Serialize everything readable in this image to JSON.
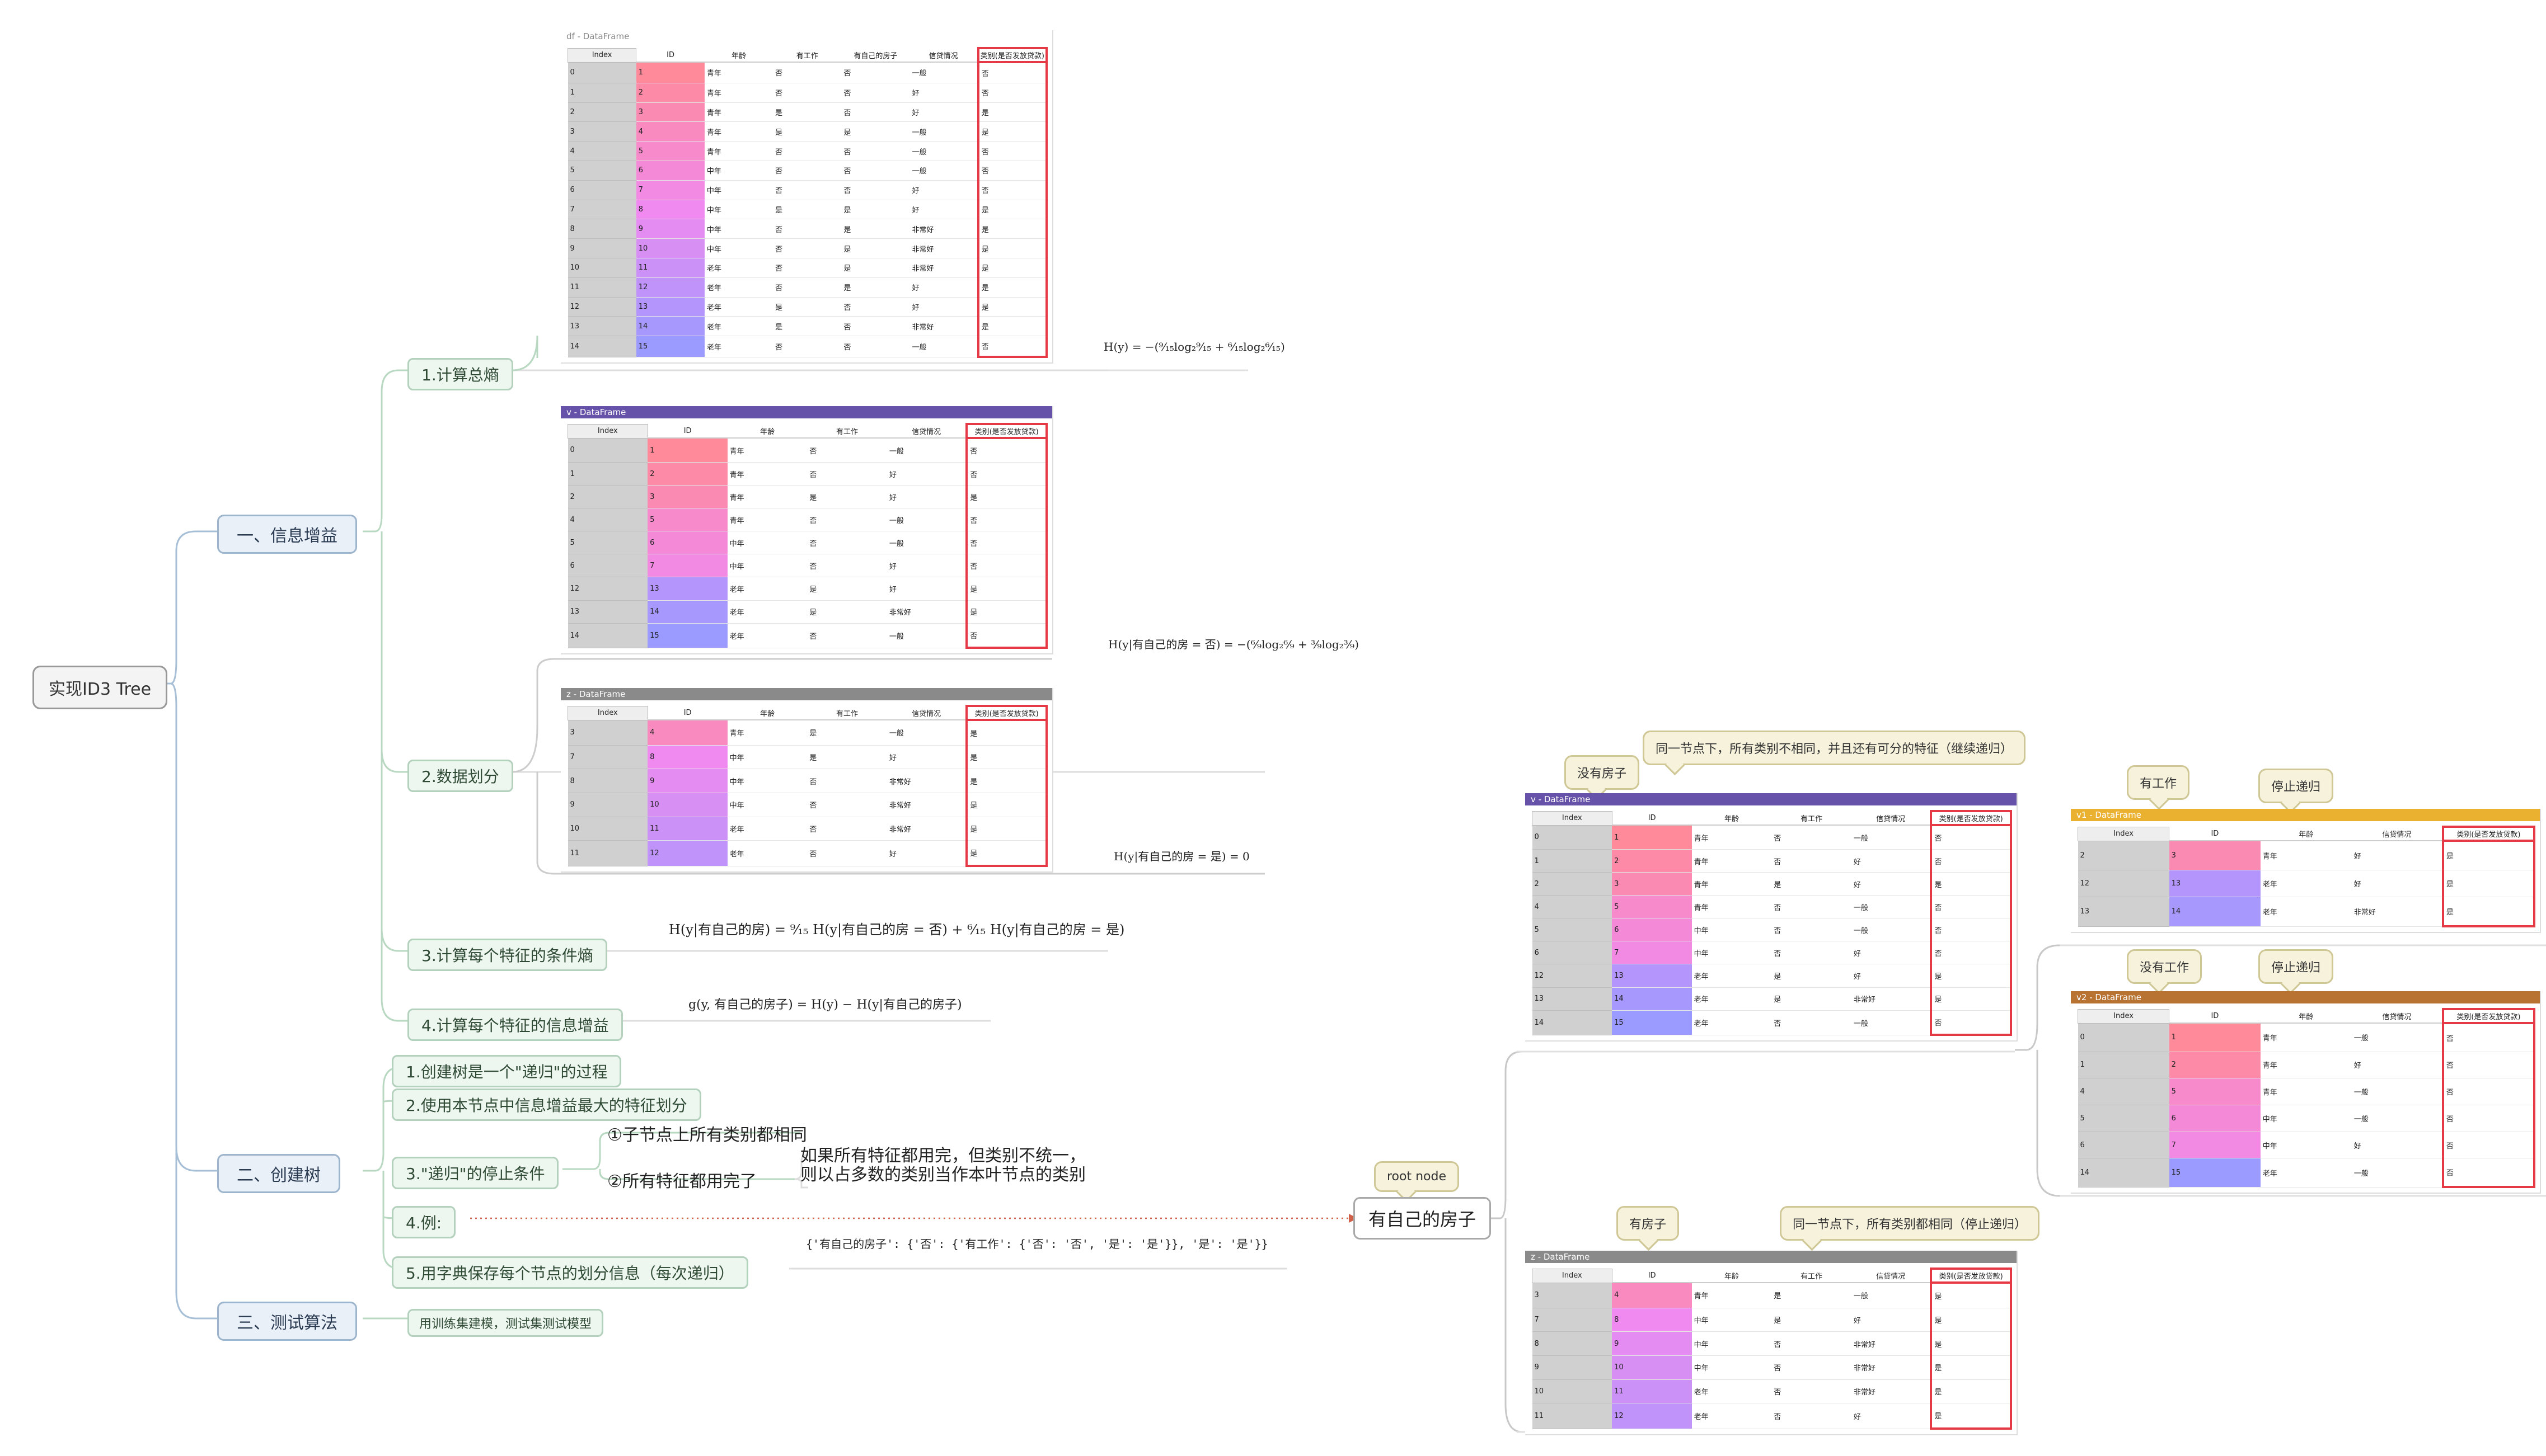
{
  "root": "实现ID3 Tree",
  "level1": {
    "info_gain": "一、信息增益",
    "build_tree": "二、创建树",
    "test": "三、测试算法"
  },
  "info_gain_items": {
    "total_entropy": "1.计算总熵",
    "data_split": "2.数据划分",
    "cond_entropy": "3.计算每个特征的条件熵",
    "info_gain": "4.计算每个特征的信息增益"
  },
  "build_tree_items": {
    "recursive": "1.创建树是一个\"递归\"的过程",
    "max_gain": "2.使用本节点中信息增益最大的特征划分",
    "stop": "3.\"递归\"的停止条件",
    "stop_1": "①子节点上所有类别都相同",
    "stop_2": "②所有特征都用完了",
    "stop_2_note_line1": "如果所有特征都用完，但类别不统一，",
    "stop_2_note_line2": "则以占多数的类别当作本叶节点的类别",
    "example": "4.例:",
    "dict_save": "5.用字典保存每个节点的划分信息（每次递归）",
    "dict_text": "{'有自己的房子': {'否': {'有工作': {'否': '否', '是': '是'}}, '是': '是'}}"
  },
  "test_items": {
    "train_test": "用训练集建模，测试集测试模型"
  },
  "formulas": {
    "H": "H(y) = −(⁹⁄₁₅log₂⁹⁄₁₅ + ⁶⁄₁₅log₂⁶⁄₁₅)",
    "H_no": "H(y|有自己的房 = 否) = −(⁶⁄₉log₂⁶⁄₉ + ³⁄₉log₂³⁄₉)",
    "H_yes": "H(y|有自己的房 = 是) = 0",
    "H_cond": "H(y|有自己的房) = ⁹⁄₁₅ H(y|有自己的房 = 否) + ⁶⁄₁₅ H(y|有自己的房 = 是)",
    "gain": "g(y, 有自己的房子) = H(y) − H(y|有自己的房子)"
  },
  "tree": {
    "root_label": "root node",
    "root_feature": "有自己的房子",
    "no_house": "没有房子",
    "has_house": "有房子",
    "no_house_note": "同一节点下，所有类别不相同，并且还有可分的特征（继续递归）",
    "has_house_note": "同一节点下，所有类别都相同（停止递归）",
    "has_job": "有工作",
    "no_job": "没有工作",
    "stop_1": "停止递归",
    "stop_2": "停止递归"
  },
  "columns": [
    "Index",
    "ID",
    "年龄",
    "有工作",
    "有自己的房子",
    "信贷情况",
    "类别(是否发放贷款)"
  ],
  "columns_short": [
    "Index",
    "ID",
    "年龄",
    "有工作",
    "信贷情况",
    "类别(是否发放贷款)"
  ],
  "tables": {
    "df": {
      "title": "df - DataFrame",
      "rows": [
        [
          "0",
          "1",
          "青年",
          "否",
          "否",
          "一般",
          "否"
        ],
        [
          "1",
          "2",
          "青年",
          "否",
          "否",
          "好",
          "否"
        ],
        [
          "2",
          "3",
          "青年",
          "是",
          "否",
          "好",
          "是"
        ],
        [
          "3",
          "4",
          "青年",
          "是",
          "是",
          "一般",
          "是"
        ],
        [
          "4",
          "5",
          "青年",
          "否",
          "否",
          "一般",
          "否"
        ],
        [
          "5",
          "6",
          "中年",
          "否",
          "否",
          "一般",
          "否"
        ],
        [
          "6",
          "7",
          "中年",
          "否",
          "否",
          "好",
          "否"
        ],
        [
          "7",
          "8",
          "中年",
          "是",
          "是",
          "好",
          "是"
        ],
        [
          "8",
          "9",
          "中年",
          "否",
          "是",
          "非常好",
          "是"
        ],
        [
          "9",
          "10",
          "中年",
          "否",
          "是",
          "非常好",
          "是"
        ],
        [
          "10",
          "11",
          "老年",
          "否",
          "是",
          "非常好",
          "是"
        ],
        [
          "11",
          "12",
          "老年",
          "否",
          "是",
          "好",
          "是"
        ],
        [
          "12",
          "13",
          "老年",
          "是",
          "否",
          "好",
          "是"
        ],
        [
          "13",
          "14",
          "老年",
          "是",
          "否",
          "非常好",
          "是"
        ],
        [
          "14",
          "15",
          "老年",
          "否",
          "否",
          "一般",
          "否"
        ]
      ]
    },
    "v": {
      "title": "v - DataFrame",
      "rows": [
        [
          "0",
          "1",
          "青年",
          "否",
          "一般",
          "否"
        ],
        [
          "1",
          "2",
          "青年",
          "否",
          "好",
          "否"
        ],
        [
          "2",
          "3",
          "青年",
          "是",
          "好",
          "是"
        ],
        [
          "4",
          "5",
          "青年",
          "否",
          "一般",
          "否"
        ],
        [
          "5",
          "6",
          "中年",
          "否",
          "一般",
          "否"
        ],
        [
          "6",
          "7",
          "中年",
          "否",
          "好",
          "否"
        ],
        [
          "12",
          "13",
          "老年",
          "是",
          "好",
          "是"
        ],
        [
          "13",
          "14",
          "老年",
          "是",
          "非常好",
          "是"
        ],
        [
          "14",
          "15",
          "老年",
          "否",
          "一般",
          "否"
        ]
      ]
    },
    "z": {
      "title": "z - DataFrame",
      "rows": [
        [
          "3",
          "4",
          "青年",
          "是",
          "一般",
          "是"
        ],
        [
          "7",
          "8",
          "中年",
          "是",
          "好",
          "是"
        ],
        [
          "8",
          "9",
          "中年",
          "否",
          "非常好",
          "是"
        ],
        [
          "9",
          "10",
          "中年",
          "否",
          "非常好",
          "是"
        ],
        [
          "10",
          "11",
          "老年",
          "否",
          "非常好",
          "是"
        ],
        [
          "11",
          "12",
          "老年",
          "否",
          "好",
          "是"
        ]
      ]
    },
    "v1": {
      "title": "v1 - DataFrame",
      "rows": [
        [
          "2",
          "3",
          "青年",
          "好",
          "是"
        ],
        [
          "12",
          "13",
          "老年",
          "好",
          "是"
        ],
        [
          "13",
          "14",
          "老年",
          "非常好",
          "是"
        ]
      ]
    },
    "v2": {
      "title": "v2 - DataFrame",
      "rows": [
        [
          "0",
          "1",
          "青年",
          "一般",
          "否"
        ],
        [
          "1",
          "2",
          "青年",
          "好",
          "否"
        ],
        [
          "4",
          "5",
          "青年",
          "一般",
          "否"
        ],
        [
          "5",
          "6",
          "中年",
          "一般",
          "否"
        ],
        [
          "6",
          "7",
          "中年",
          "好",
          "否"
        ],
        [
          "14",
          "15",
          "老年",
          "一般",
          "否"
        ]
      ]
    }
  },
  "colors": {
    "title_purple": "#6652a8",
    "title_gray": "#8a8a8a",
    "title_yellow": "#e9b12f",
    "title_brown": "#b87333",
    "highlight_red": "#e53945",
    "id_gradient_start": "#ff8a9a",
    "id_gradient_mid": "#f08af0",
    "id_gradient_end": "#9a9aff"
  }
}
